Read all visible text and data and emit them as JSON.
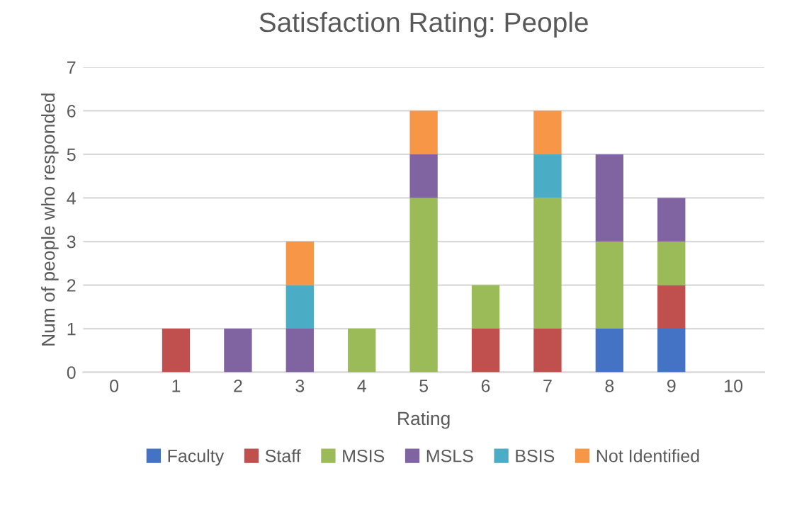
{
  "chart_data": {
    "type": "bar",
    "title": "Satisfaction Rating: People",
    "xlabel": "Rating",
    "ylabel": "Num of people who responded",
    "categories": [
      "0",
      "1",
      "2",
      "3",
      "4",
      "5",
      "6",
      "7",
      "8",
      "9",
      "10"
    ],
    "stacked": true,
    "series": [
      {
        "name": "Faculty",
        "color": "#4472c4",
        "values": [
          0,
          0,
          0,
          0,
          0,
          0,
          0,
          0,
          1,
          1,
          0
        ]
      },
      {
        "name": "Staff",
        "color": "#c0504d",
        "values": [
          0,
          1,
          0,
          0,
          0,
          0,
          1,
          1,
          0,
          1,
          0
        ]
      },
      {
        "name": "MSIS",
        "color": "#9bbb59",
        "values": [
          0,
          0,
          0,
          0,
          1,
          4,
          1,
          3,
          2,
          1,
          0
        ]
      },
      {
        "name": "MSLS",
        "color": "#8064a2",
        "values": [
          0,
          0,
          1,
          1,
          0,
          1,
          0,
          0,
          2,
          1,
          0
        ]
      },
      {
        "name": "BSIS",
        "color": "#4bacc6",
        "values": [
          0,
          0,
          0,
          1,
          0,
          0,
          0,
          1,
          0,
          0,
          0
        ]
      },
      {
        "name": "Not Identified",
        "color": "#f79646",
        "values": [
          0,
          0,
          0,
          1,
          0,
          1,
          0,
          1,
          0,
          0,
          0
        ]
      }
    ],
    "ylim": [
      0,
      7
    ],
    "yticks": [
      0,
      1,
      2,
      3,
      4,
      5,
      6,
      7
    ],
    "grid": "y",
    "legend": "bottom"
  }
}
